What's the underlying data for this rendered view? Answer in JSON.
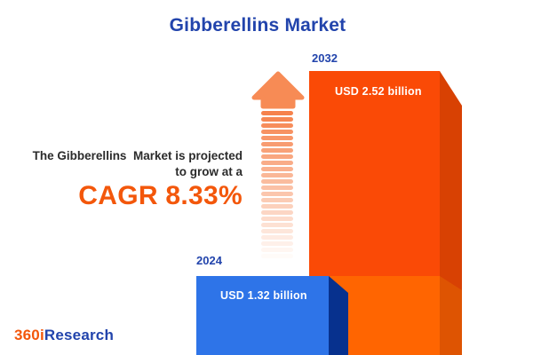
{
  "title": "Gibberellins Market",
  "projection": {
    "line1": "The Gibberellins  Market is projected",
    "line2": "to grow at a",
    "cagr": "CAGR 8.33%"
  },
  "bars": {
    "start": {
      "year": "2024",
      "value_label": "USD 1.32 billion"
    },
    "end": {
      "year": "2032",
      "value_label": "USD 2.52 billion"
    }
  },
  "logo": {
    "part1": "360i",
    "part2": "Research"
  },
  "icons": {
    "growth_arrow": "up-arrow-icon"
  },
  "colors": {
    "title_blue": "#2244AC",
    "cagr_orange": "#F3570B",
    "bar_blue": "#2E74E8",
    "bar_blue_side": "#07318E",
    "bar_orange": "#FA4A06",
    "bar_orange_light": "#FF6501",
    "bar_orange_side": "#D84103",
    "bar_orange_side_light": "#DE5402",
    "arrow_orange": "#F78B55"
  },
  "chart_data": {
    "type": "bar",
    "title": "Gibberellins Market",
    "categories": [
      "2024",
      "2032"
    ],
    "values": [
      1.32,
      2.52
    ],
    "unit": "USD billion",
    "value_labels": [
      "USD 1.32 billion",
      "USD 2.52 billion"
    ],
    "cagr_percent": 8.33,
    "annotation": "The Gibberellins Market is projected to grow at a CAGR 8.33%",
    "series_colors": [
      "#2E74E8",
      "#FA4A06"
    ],
    "legend": false,
    "grid": false,
    "orientation": "vertical"
  }
}
